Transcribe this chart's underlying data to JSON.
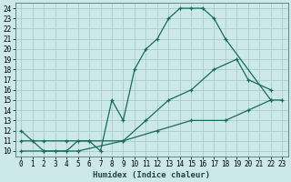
{
  "xlabel": "Humidex (Indice chaleur)",
  "bg_color": "#cce8e8",
  "grid_color": "#aacccc",
  "line_color": "#1a6b5e",
  "xlim": [
    -0.5,
    23.5
  ],
  "ylim": [
    9.5,
    24.5
  ],
  "xticks": [
    0,
    1,
    2,
    3,
    4,
    5,
    6,
    7,
    8,
    9,
    10,
    11,
    12,
    13,
    14,
    15,
    16,
    17,
    18,
    19,
    20,
    21,
    22,
    23
  ],
  "yticks": [
    10,
    11,
    12,
    13,
    14,
    15,
    16,
    17,
    18,
    19,
    20,
    21,
    22,
    23,
    24
  ],
  "curve1_x": [
    0,
    1,
    2,
    3,
    4,
    5,
    6,
    7,
    8,
    9,
    10,
    11,
    12,
    13,
    14,
    15,
    16,
    17,
    18,
    22
  ],
  "curve1_y": [
    12,
    11,
    10,
    10,
    10,
    11,
    11,
    10,
    15,
    13,
    18,
    20,
    21,
    23,
    24,
    24,
    24,
    23,
    21,
    15
  ],
  "curve2_x": [
    0,
    2,
    4,
    6,
    9,
    11,
    13,
    15,
    17,
    19,
    20,
    22
  ],
  "curve2_y": [
    11,
    11,
    11,
    11,
    11,
    13,
    15,
    16,
    18,
    19,
    17,
    16
  ],
  "curve3_x": [
    0,
    2,
    5,
    9,
    12,
    15,
    18,
    20,
    22,
    23
  ],
  "curve3_y": [
    10,
    10,
    10,
    11,
    12,
    13,
    13,
    14,
    15,
    15
  ],
  "tick_fontsize": 5.5,
  "label_fontsize": 6.5
}
